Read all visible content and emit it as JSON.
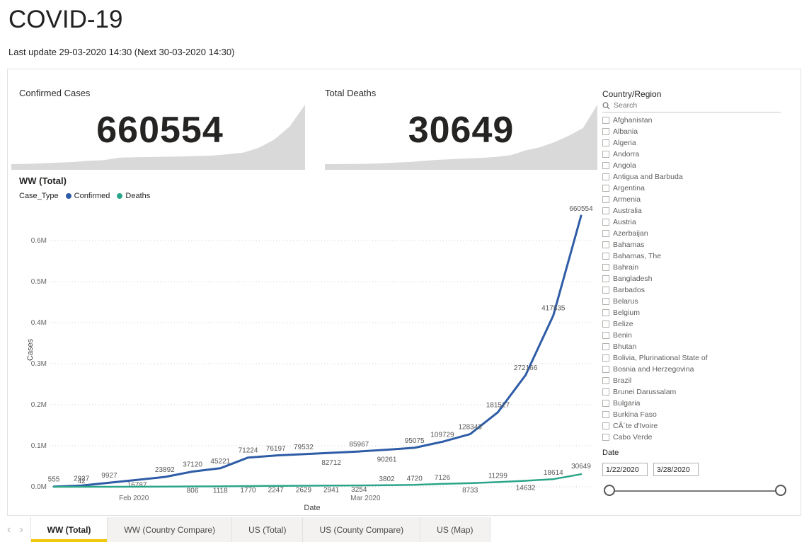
{
  "header": {
    "title": "COVID-19",
    "subtitle": "Last update 29-03-2020 14:30 (Next 30-03-2020 14:30)"
  },
  "kpis": [
    {
      "label": "Confirmed Cases",
      "value": "660554"
    },
    {
      "label": "Total Deaths",
      "value": "30649"
    }
  ],
  "chart_data": {
    "type": "line",
    "title": "WW (Total)",
    "legend_title": "Case_Type",
    "legend_position": "top-left",
    "xlabel": "Date",
    "ylabel": "Cases",
    "x_start": "1/22/2020",
    "x_end": "3/28/2020",
    "x_tick_labels": [
      "Feb 2020",
      "Mar 2020"
    ],
    "y_tick_labels": [
      "0.0M",
      "0.1M",
      "0.2M",
      "0.3M",
      "0.4M",
      "0.5M",
      "0.6M"
    ],
    "ylim": [
      0,
      672000
    ],
    "grid": "dotted-horizontal",
    "series": [
      {
        "name": "Confirmed",
        "color": "#2E5CA6",
        "values": [
          555,
          2927,
          9927,
          16787,
          23892,
          37120,
          45221,
          71224,
          76197,
          79532,
          82712,
          85967,
          90261,
          95075,
          109729,
          128343,
          181527,
          272166,
          417835,
          660554
        ],
        "labels": [
          "555",
          "2927",
          "9927",
          "16787",
          "23892",
          "37120",
          "45221",
          "71224",
          "76197",
          "79532",
          "82712",
          "85967",
          "90261",
          "95075",
          "109729",
          "128343",
          "181527",
          "272166",
          "417835",
          "660554"
        ]
      },
      {
        "name": "Deaths",
        "color": "#2AA588",
        "values": [
          17,
          42,
          80,
          213,
          426,
          806,
          1118,
          1770,
          2247,
          2629,
          2941,
          3254,
          3802,
          4720,
          7126,
          8733,
          11299,
          14632,
          18614,
          30649
        ],
        "labels": [
          null,
          "42",
          null,
          null,
          null,
          "806",
          "1118",
          "1770",
          "2247",
          "2629",
          "2941",
          "3254",
          "3802",
          "4720",
          "7126",
          "8733",
          "11299",
          "14632",
          "18614",
          "30649"
        ]
      }
    ]
  },
  "country_panel": {
    "title": "Country/Region",
    "search_placeholder": "Search",
    "items": [
      "Afghanistan",
      "Albania",
      "Algeria",
      "Andorra",
      "Angola",
      "Antigua and Barbuda",
      "Argentina",
      "Armenia",
      "Australia",
      "Austria",
      "Azerbaijan",
      "Bahamas",
      "Bahamas, The",
      "Bahrain",
      "Bangladesh",
      "Barbados",
      "Belarus",
      "Belgium",
      "Belize",
      "Benin",
      "Bhutan",
      "Bolivia, Plurinational State of",
      "Bosnia and Herzegovina",
      "Brazil",
      "Brunei Darussalam",
      "Bulgaria",
      "Burkina Faso",
      "CÃ´te d'Ivoire",
      "Cabo Verde"
    ]
  },
  "date_filter": {
    "label": "Date",
    "start_value": "1/22/2020",
    "end_value": "3/28/2020"
  },
  "tabs": {
    "nav": {
      "prev_label": "‹",
      "next_label": "›"
    },
    "items": [
      {
        "label": "WW (Total)",
        "active": true
      },
      {
        "label": "WW (Country Compare)",
        "active": false
      },
      {
        "label": "US (Total)",
        "active": false
      },
      {
        "label": "US (County Compare)",
        "active": false
      },
      {
        "label": "US (Map)",
        "active": false
      }
    ]
  },
  "colors": {
    "accent": "#F2C811",
    "sparkline": "#D9D9D9",
    "grid": "#CFCFCF"
  }
}
